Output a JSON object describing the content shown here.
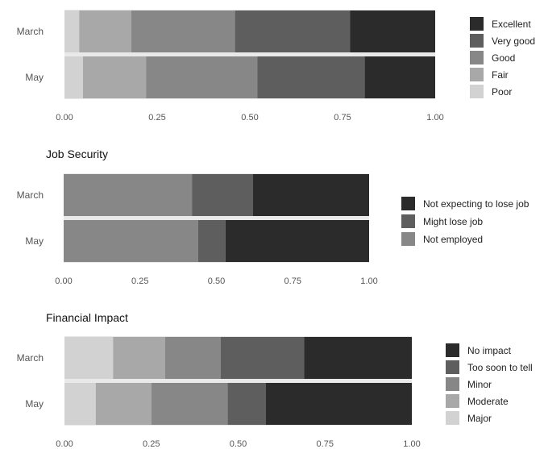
{
  "chart_data": [
    {
      "type": "bar",
      "orientation": "horizontal",
      "stacked": "proportion",
      "title": "",
      "xlabel": "",
      "ylabel": "",
      "xlim": [
        0,
        1
      ],
      "xticks": [
        "0.00",
        "0.25",
        "0.50",
        "0.75",
        "1.00"
      ],
      "categories": [
        "March",
        "May"
      ],
      "legend_position": "right",
      "series": [
        {
          "name": "Poor",
          "color": "#d2d2d2",
          "values": [
            0.04,
            0.05
          ]
        },
        {
          "name": "Fair",
          "color": "#a8a8a8",
          "values": [
            0.14,
            0.17
          ]
        },
        {
          "name": "Good",
          "color": "#878787",
          "values": [
            0.28,
            0.3
          ]
        },
        {
          "name": "Very good",
          "color": "#5e5e5e",
          "values": [
            0.31,
            0.29
          ]
        },
        {
          "name": "Excellent",
          "color": "#2b2b2b",
          "values": [
            0.23,
            0.19
          ]
        }
      ]
    },
    {
      "type": "bar",
      "orientation": "horizontal",
      "stacked": "proportion",
      "title": "Job Security",
      "xlabel": "",
      "ylabel": "",
      "xlim": [
        0,
        1
      ],
      "xticks": [
        "0.00",
        "0.25",
        "0.50",
        "0.75",
        "1.00"
      ],
      "categories": [
        "March",
        "May"
      ],
      "legend_position": "right",
      "series": [
        {
          "name": "Not employed",
          "color": "#878787",
          "values": [
            0.42,
            0.44
          ]
        },
        {
          "name": "Might lose job",
          "color": "#5e5e5e",
          "values": [
            0.2,
            0.09
          ]
        },
        {
          "name": "Not expecting to lose job",
          "color": "#2b2b2b",
          "values": [
            0.38,
            0.47
          ]
        }
      ]
    },
    {
      "type": "bar",
      "orientation": "horizontal",
      "stacked": "proportion",
      "title": "Financial Impact",
      "xlabel": "",
      "ylabel": "",
      "xlim": [
        0,
        1
      ],
      "xticks": [
        "0.00",
        "0.25",
        "0.50",
        "0.75",
        "1.00"
      ],
      "categories": [
        "March",
        "May"
      ],
      "legend_position": "right",
      "series": [
        {
          "name": "Major",
          "color": "#d2d2d2",
          "values": [
            0.14,
            0.09
          ]
        },
        {
          "name": "Moderate",
          "color": "#a8a8a8",
          "values": [
            0.15,
            0.16
          ]
        },
        {
          "name": "Minor",
          "color": "#878787",
          "values": [
            0.16,
            0.22
          ]
        },
        {
          "name": "Too soon to tell",
          "color": "#5e5e5e",
          "values": [
            0.24,
            0.11
          ]
        },
        {
          "name": "No impact",
          "color": "#2b2b2b",
          "values": [
            0.31,
            0.42
          ]
        }
      ]
    }
  ]
}
